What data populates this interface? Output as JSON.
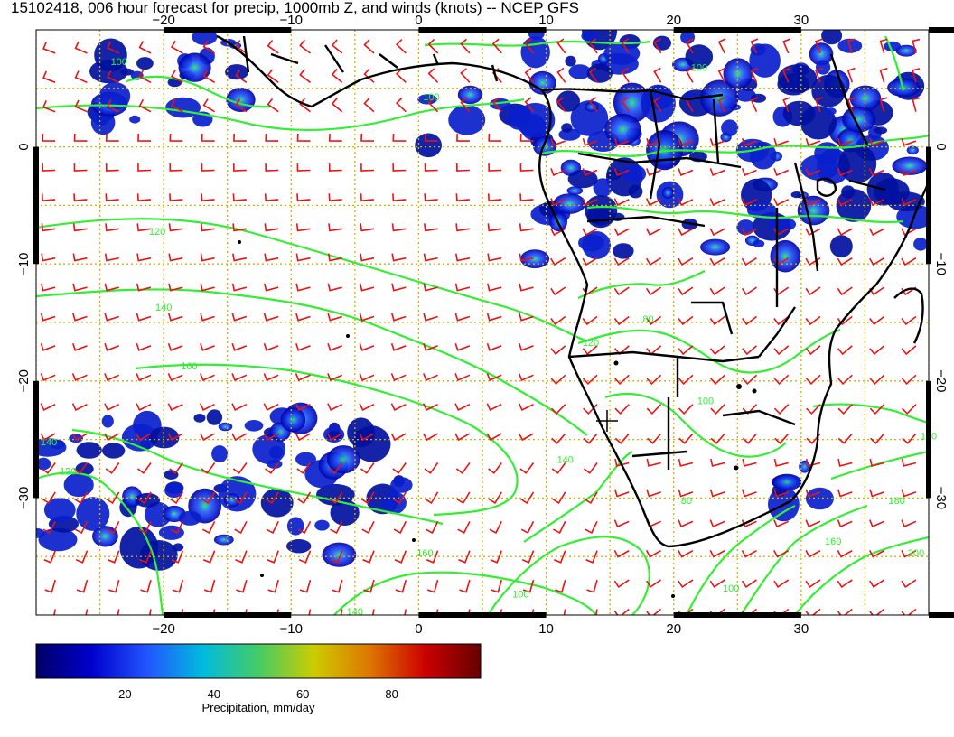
{
  "title": "15102418, 006 hour forecast for precip, 1000mb Z, and winds (knots) -- NCEP GFS",
  "map": {
    "lon_range": [
      -30,
      40
    ],
    "lat_range": [
      -40,
      10
    ],
    "lon_ticks": [
      -20,
      -10,
      0,
      10,
      20,
      30
    ],
    "lat_ticks": [
      0,
      -10,
      -20,
      -30
    ],
    "lon_tick_labels": [
      "−20",
      "−10",
      "0",
      "10",
      "20",
      "30"
    ],
    "lat_tick_labels": [
      "0",
      "−10",
      "−20",
      "−30"
    ],
    "grid_style": "dotted",
    "grid_color": "#d4b000",
    "coast_color": "#000000",
    "contour_color": "#33ee33",
    "barb_color": "#ee1111"
  },
  "contour_labels": [
    {
      "text": "100",
      "lon": -23.5,
      "lat": 7.0
    },
    {
      "text": "100",
      "lon": 1.0,
      "lat": 4.0
    },
    {
      "text": "100",
      "lon": 22.0,
      "lat": 6.5
    },
    {
      "text": "120",
      "lon": -20.5,
      "lat": -7.5
    },
    {
      "text": "140",
      "lon": -20.0,
      "lat": -14.0
    },
    {
      "text": "160",
      "lon": -18.0,
      "lat": -19.0
    },
    {
      "text": "140",
      "lon": -29.0,
      "lat": -25.5
    },
    {
      "text": "120",
      "lon": -27.5,
      "lat": -28.0
    },
    {
      "text": "160",
      "lon": 0.5,
      "lat": -35.0
    },
    {
      "text": "140",
      "lon": 11.5,
      "lat": -27.0
    },
    {
      "text": "120",
      "lon": 13.5,
      "lat": -17.0
    },
    {
      "text": "80",
      "lon": 18.0,
      "lat": -15.0
    },
    {
      "text": "100",
      "lon": 22.5,
      "lat": -22.0
    },
    {
      "text": "80",
      "lon": 21.0,
      "lat": -30.5
    },
    {
      "text": "140",
      "lon": -5.0,
      "lat": -40.0
    },
    {
      "text": "100",
      "lon": 8.0,
      "lat": -38.5
    },
    {
      "text": "100",
      "lon": 24.5,
      "lat": -38.0
    },
    {
      "text": "160",
      "lon": 40.0,
      "lat": -25.0
    },
    {
      "text": "180",
      "lon": 37.5,
      "lat": -30.5
    },
    {
      "text": "200",
      "lon": 39.0,
      "lat": -35.0
    },
    {
      "text": "160",
      "lon": 32.5,
      "lat": -34.0
    }
  ],
  "precip_regions": [
    {
      "name": "guinea-coast",
      "lon": [
        -26,
        -12
      ],
      "lat": [
        2,
        10
      ],
      "intensity": 0.55
    },
    {
      "name": "gulf-of-guinea",
      "lon": [
        0,
        10
      ],
      "lat": [
        0,
        5
      ],
      "intensity": 0.35
    },
    {
      "name": "central-africa",
      "lon": [
        9,
        40
      ],
      "lat": [
        -10,
        10
      ],
      "intensity": 0.7
    },
    {
      "name": "south-atlantic-band",
      "lon": [
        -30,
        -1
      ],
      "lat": [
        -35,
        -23
      ],
      "intensity": 0.6
    },
    {
      "name": "mozambique",
      "lon": [
        28,
        33
      ],
      "lat": [
        -31,
        -25
      ],
      "intensity": 0.5
    }
  ],
  "colorbar": {
    "ticks": [
      20,
      40,
      60,
      80
    ],
    "range": [
      0,
      100
    ],
    "stops": [
      "#000066",
      "#0000cc",
      "#2255ff",
      "#00bbdd",
      "#44cc66",
      "#cccc00",
      "#dd7700",
      "#cc0000",
      "#660000"
    ],
    "label": "Precipitation, mm/day"
  }
}
